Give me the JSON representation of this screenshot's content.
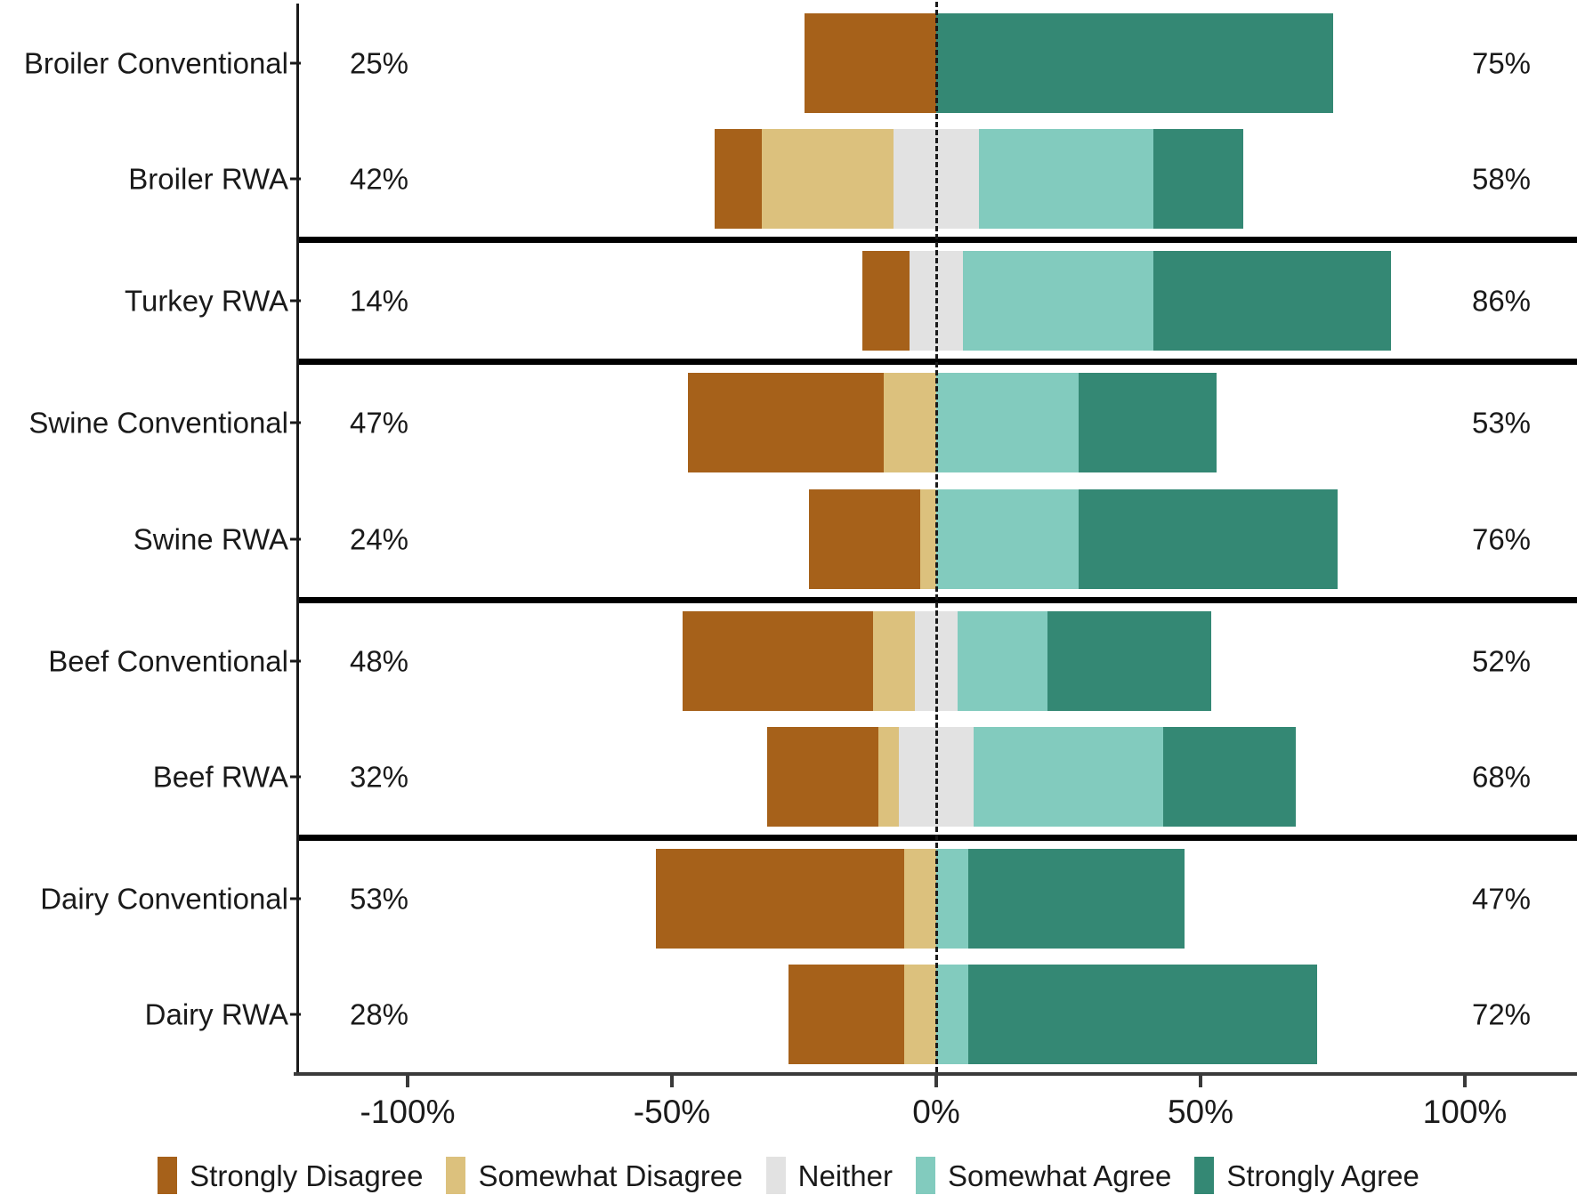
{
  "chart_data": {
    "type": "bar",
    "variant": "diverging_stacked_likert",
    "title": "",
    "categories": [
      "Broiler Conventional",
      "Broiler RWA",
      "Turkey RWA",
      "Swine Conventional",
      "Swine RWA",
      "Beef Conventional",
      "Beef RWA",
      "Dairy Conventional",
      "Dairy RWA"
    ],
    "panels": [
      [
        0,
        1
      ],
      [
        2
      ],
      [
        3,
        4
      ],
      [
        5,
        6
      ],
      [
        7,
        8
      ]
    ],
    "series": [
      {
        "name": "Strongly Disagree",
        "color": "#A6611A",
        "values": [
          25,
          9,
          9,
          37,
          21,
          36,
          21,
          47,
          22
        ]
      },
      {
        "name": "Somewhat Disagree",
        "color": "#DCC17D",
        "values": [
          0,
          25,
          0,
          10,
          3,
          8,
          4,
          6,
          6
        ]
      },
      {
        "name": "Neither",
        "color": "#E2E2E2",
        "values": [
          0,
          16,
          10,
          0,
          0,
          8,
          14,
          0,
          0
        ]
      },
      {
        "name": "Somewhat Agree",
        "color": "#82CBBE",
        "values": [
          0,
          33,
          36,
          27,
          27,
          17,
          36,
          6,
          6
        ]
      },
      {
        "name": "Strongly Agree",
        "color": "#348874",
        "values": [
          75,
          17,
          45,
          26,
          49,
          31,
          25,
          41,
          66
        ]
      }
    ],
    "neither_split_on_zero": true,
    "left_totals": [
      "25%",
      "42%",
      "14%",
      "47%",
      "24%",
      "48%",
      "32%",
      "53%",
      "28%"
    ],
    "right_totals": [
      "75%",
      "58%",
      "86%",
      "53%",
      "76%",
      "52%",
      "68%",
      "47%",
      "72%"
    ],
    "x_axis": {
      "tick_values": [
        -100,
        -50,
        0,
        50,
        100
      ],
      "tick_labels": [
        "-100%",
        "-50%",
        "0%",
        "50%",
        "100%"
      ]
    },
    "zero_line": {
      "style": "dashed",
      "color": "#1A1A1A"
    },
    "legend_position": "bottom",
    "legend": [
      "Strongly Disagree",
      "Somewhat Disagree",
      "Neither",
      "Somewhat Agree",
      "Strongly Agree"
    ],
    "grid": "off"
  },
  "style": {
    "background": "#FFFFFF",
    "text_color": "#1A1A1A",
    "axis_color": "#3A3A3A",
    "separator_color": "#000000"
  }
}
